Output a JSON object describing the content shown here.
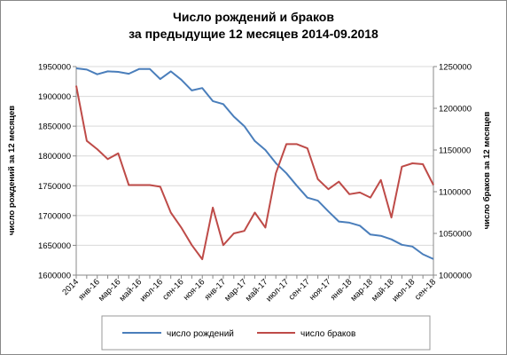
{
  "chart_data": {
    "type": "line",
    "title": [
      "Число рождений и браков",
      "за предыдущие 12 месяцев 2014-09.2018"
    ],
    "ylabel_left": "число рождений за 12 месяцев",
    "ylabel_right": "число браков  за 12 месяцев",
    "ylim_left": [
      1600000,
      1950000
    ],
    "yticks_left": [
      "1600000",
      "1650000",
      "1700000",
      "1750000",
      "1800000",
      "1850000",
      "1900000",
      "1950000"
    ],
    "ylim_right": [
      1000000,
      1250000
    ],
    "yticks_right": [
      "1000000",
      "1050000",
      "1100000",
      "1150000",
      "1200000",
      "1250000"
    ],
    "x_tick_labels": [
      "2014",
      "янв-16",
      "мар-16",
      "май-16",
      "июл-16",
      "сен-16",
      "ноя-16",
      "янв-17",
      "мар-17",
      "май-17",
      "июл-17",
      "сен-17",
      "ноя-17",
      "янв-18",
      "мар-18",
      "май-18",
      "июл-18",
      "сен-18"
    ],
    "grid": "horizontal",
    "legend_position": "bottom",
    "series": [
      {
        "name": "число рождений",
        "axis": "left",
        "color": "#4a7ebb",
        "values": [
          1947000,
          1945000,
          1937000,
          1942000,
          1941000,
          1938000,
          1946000,
          1946000,
          1929000,
          1942000,
          1928000,
          1910000,
          1914000,
          1892000,
          1887000,
          1866000,
          1850000,
          1825000,
          1810000,
          1788000,
          1771000,
          1750000,
          1730000,
          1725000,
          1707000,
          1690000,
          1688000,
          1683000,
          1668000,
          1666000,
          1660000,
          1651000,
          1648000,
          1635000,
          1627000
        ]
      },
      {
        "name": "число браков",
        "axis": "right",
        "color": "#be4b48",
        "values": [
          1227000,
          1161000,
          1151000,
          1139000,
          1146000,
          1108000,
          1108000,
          1108000,
          1106000,
          1075000,
          1057000,
          1036000,
          1019000,
          1081000,
          1036000,
          1050000,
          1053000,
          1075000,
          1057000,
          1122000,
          1157000,
          1157000,
          1152000,
          1115000,
          1103000,
          1112000,
          1097000,
          1099000,
          1093000,
          1114000,
          1069000,
          1130000,
          1134000,
          1133000,
          1108000
        ]
      }
    ]
  }
}
